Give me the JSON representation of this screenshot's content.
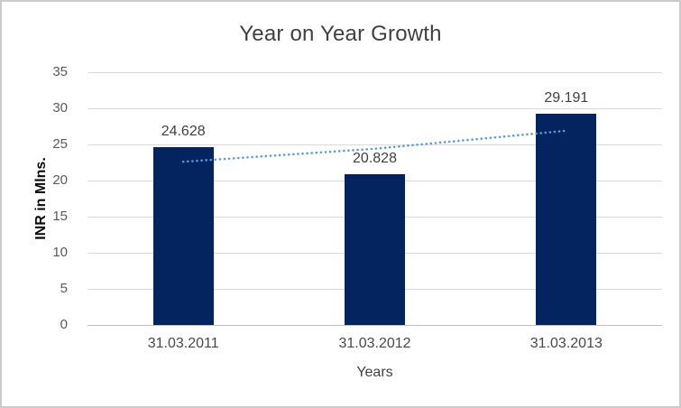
{
  "window": {
    "background": "#ffffff",
    "border_color": "#cbcbcb"
  },
  "chart_data": {
    "type": "bar",
    "title": "Year on Year Growth",
    "categories": [
      "31.03.2011",
      "31.03.2012",
      "31.03.2013"
    ],
    "values": [
      24.628,
      20.828,
      29.191
    ],
    "data_labels": [
      "24.628",
      "20.828",
      "29.191"
    ],
    "xlabel": "Years",
    "ylabel": "INR in Mlns.",
    "ylim": [
      0,
      35
    ],
    "yticks": [
      0,
      5,
      10,
      15,
      20,
      25,
      30,
      35
    ],
    "grid": true,
    "legend_position": "none",
    "bar_color": "#03245f",
    "gridline_color": "#d9d9d9",
    "axis_line_color": "#bfbfbf",
    "title_color": "#404040",
    "tick_label_color": "#595959",
    "data_label_color": "#404040",
    "trendline": {
      "style": "dotted",
      "color": "#5b9bd5",
      "values": [
        22.6,
        24.4,
        26.9
      ]
    }
  }
}
